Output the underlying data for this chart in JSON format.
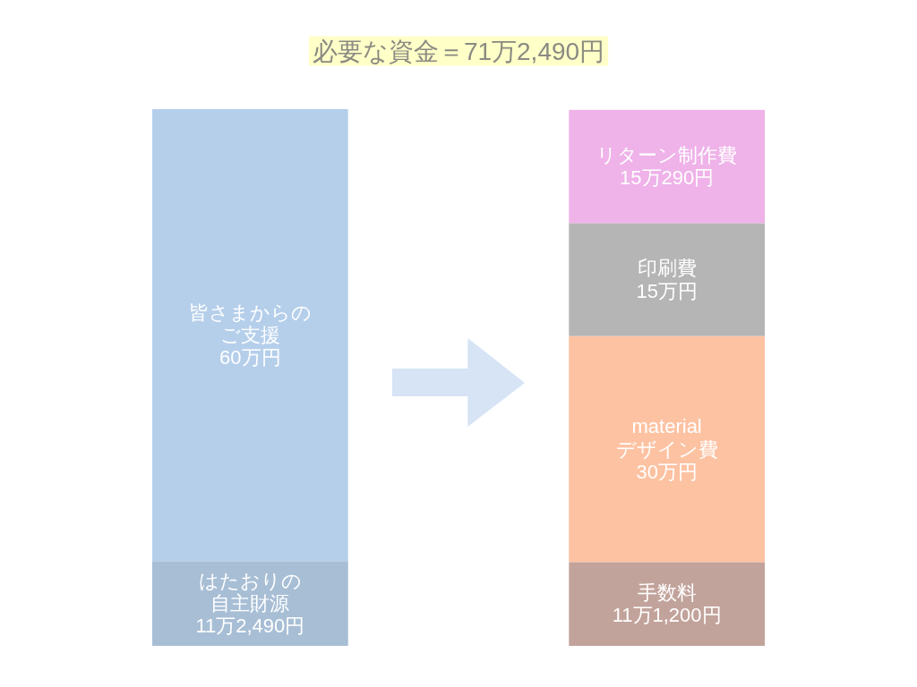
{
  "chart_data": {
    "type": "bar",
    "stacked": true,
    "title": "必要な資金＝71万2,490円",
    "categories": [
      null,
      null
    ],
    "series": [
      {
        "name": "はたおりの自主財源",
        "color": "#a7bed5",
        "values": [
          11.249,
          null
        ],
        "value_labels": [
          "11万2,490円",
          null
        ]
      },
      {
        "name": "皆さまからのご支援",
        "color": "#b5cfeb",
        "values": [
          60,
          null
        ],
        "value_labels": [
          "60万円",
          null
        ]
      },
      {
        "name": "手数料",
        "color": "#c2a39b",
        "values": [
          null,
          11.12
        ],
        "value_labels": [
          null,
          "11万1,200円"
        ]
      },
      {
        "name": "materialデザイン費",
        "color": "#fdc2a2",
        "values": [
          null,
          30
        ],
        "value_labels": [
          null,
          "30万円"
        ]
      },
      {
        "name": "印刷費",
        "color": "#b5b5b5",
        "values": [
          null,
          15
        ],
        "value_labels": [
          null,
          "15万円"
        ]
      },
      {
        "name": "リターン制作費",
        "color": "#efb2e9",
        "values": [
          null,
          15.029
        ],
        "value_labels": [
          null,
          "15万290円"
        ]
      }
    ]
  }
}
